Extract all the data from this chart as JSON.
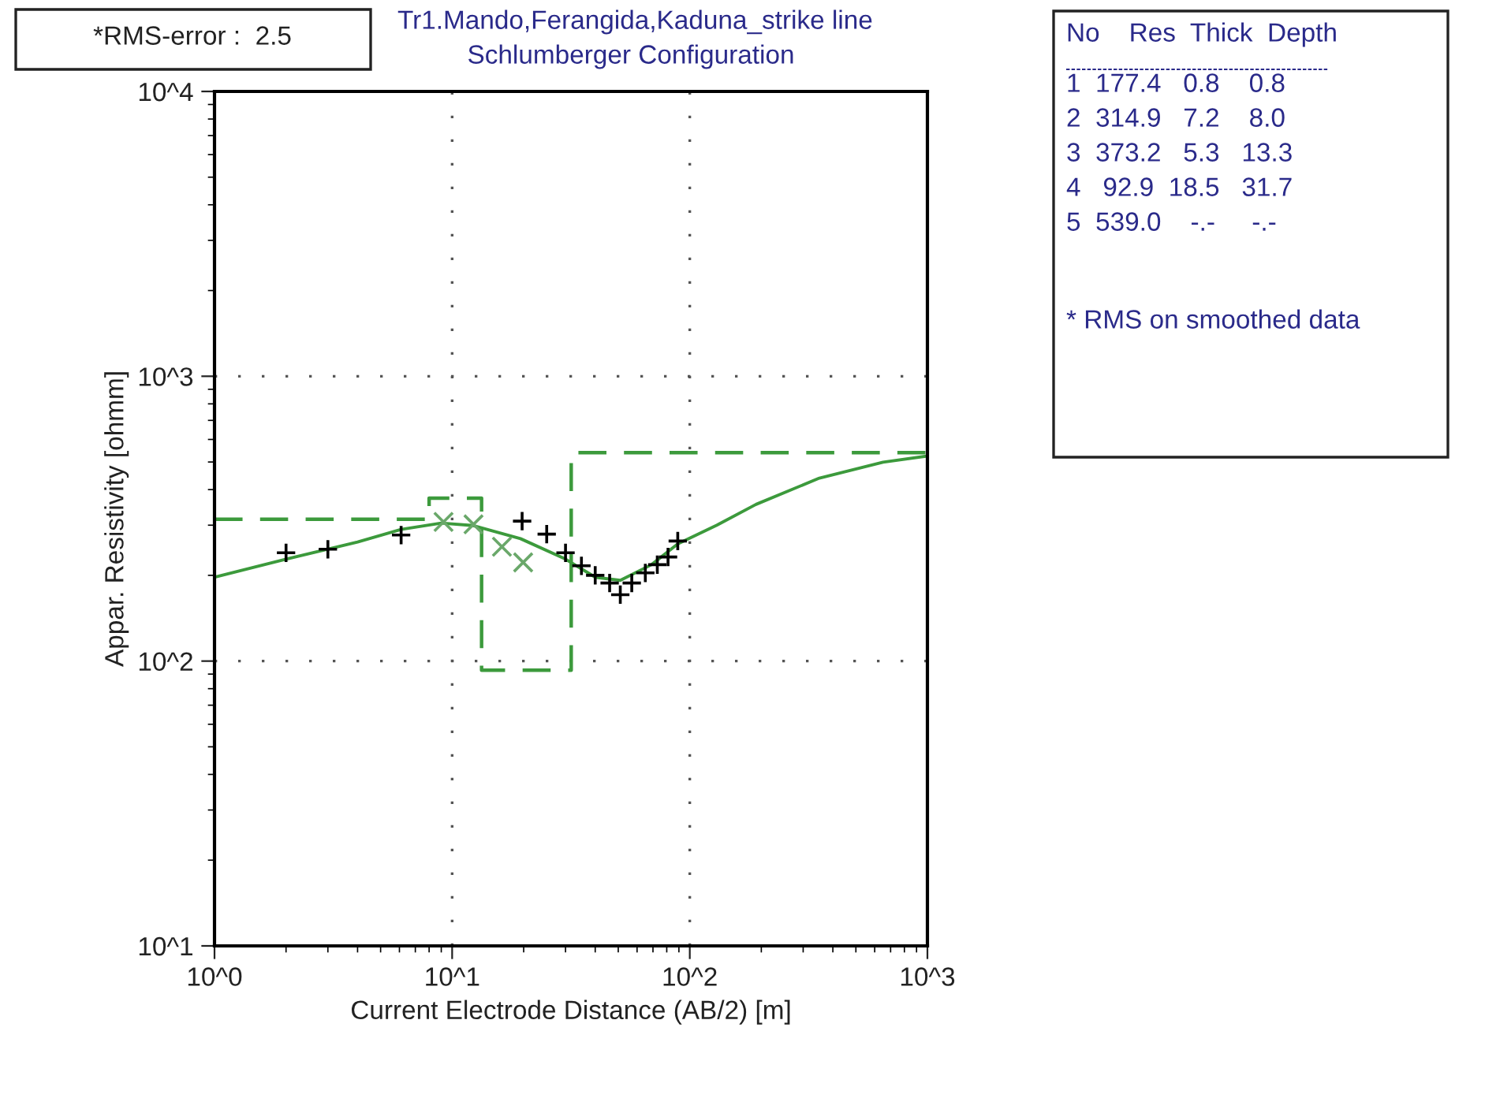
{
  "chart_data": {
    "type": "line",
    "title": "Tr1.Mando,Ferangida,Kaduna_strike line",
    "subtitle": "Schlumberger Configuration",
    "xlabel": "Current Electrode Distance (AB/2) [m]",
    "ylabel": "Appar. Resistivity [ohmm]",
    "log": "xy",
    "xlim": [
      1,
      1000
    ],
    "ylim": [
      10,
      10000
    ],
    "xticks": [
      {
        "value": 1,
        "label": "10^0"
      },
      {
        "value": 10,
        "label": "10^1"
      },
      {
        "value": 100,
        "label": "10^2"
      },
      {
        "value": 1000,
        "label": "10^3"
      }
    ],
    "yticks": [
      {
        "value": 10,
        "label": "10^1"
      },
      {
        "value": 100,
        "label": "10^2"
      },
      {
        "value": 1000,
        "label": "10^3"
      },
      {
        "value": 10000,
        "label": "10^4"
      }
    ],
    "grid": true,
    "legend": false,
    "series": [
      {
        "color": "#3c9a3c",
        "line_style": "solid",
        "x": [
          1,
          2.0,
          4.0,
          6.1,
          9.0,
          12.3,
          19.4,
          30,
          40,
          51,
          69,
          89,
          130,
          190,
          351,
          650,
          1000
        ],
        "values": [
          197,
          228,
          262,
          290,
          305,
          299,
          269,
          228,
          197,
          192,
          218,
          258,
          300,
          355,
          439,
          499,
          525
        ]
      },
      {
        "type": "step",
        "color": "#3c9a3c",
        "line_style": "dashed",
        "x": [
          1,
          8.0,
          13.3,
          31.7,
          1000
        ],
        "values": [
          314.9,
          373.2,
          92.9,
          539.0,
          539.0
        ]
      },
      {
        "type": "scatter",
        "color": "#000000",
        "marker": "cross",
        "x": [
          2.0,
          3.0,
          6.1,
          19.7,
          25,
          30,
          35,
          40,
          46,
          51,
          57,
          65,
          73,
          81,
          89
        ],
        "values": [
          240,
          247,
          277,
          310,
          279,
          240,
          216,
          200,
          188,
          171,
          188,
          204,
          218,
          232,
          264
        ]
      },
      {
        "type": "scatter",
        "color": "#6aa86a",
        "marker": "x",
        "x": [
          9.2,
          12.3,
          16.2,
          19.9
        ],
        "values": [
          308,
          302,
          252,
          222
        ]
      }
    ],
    "annotations": [
      "*RMS-error :  2.5",
      "No    Res  Thick  Depth",
      "1  177.4   0.8    0.8",
      "2  314.9   7.2    8.0",
      "3  373.2   5.3   13.3",
      "4   92.9  18.5   31.7",
      "5  539.0    -.-     -.-",
      "* RMS on smoothed data"
    ]
  }
}
